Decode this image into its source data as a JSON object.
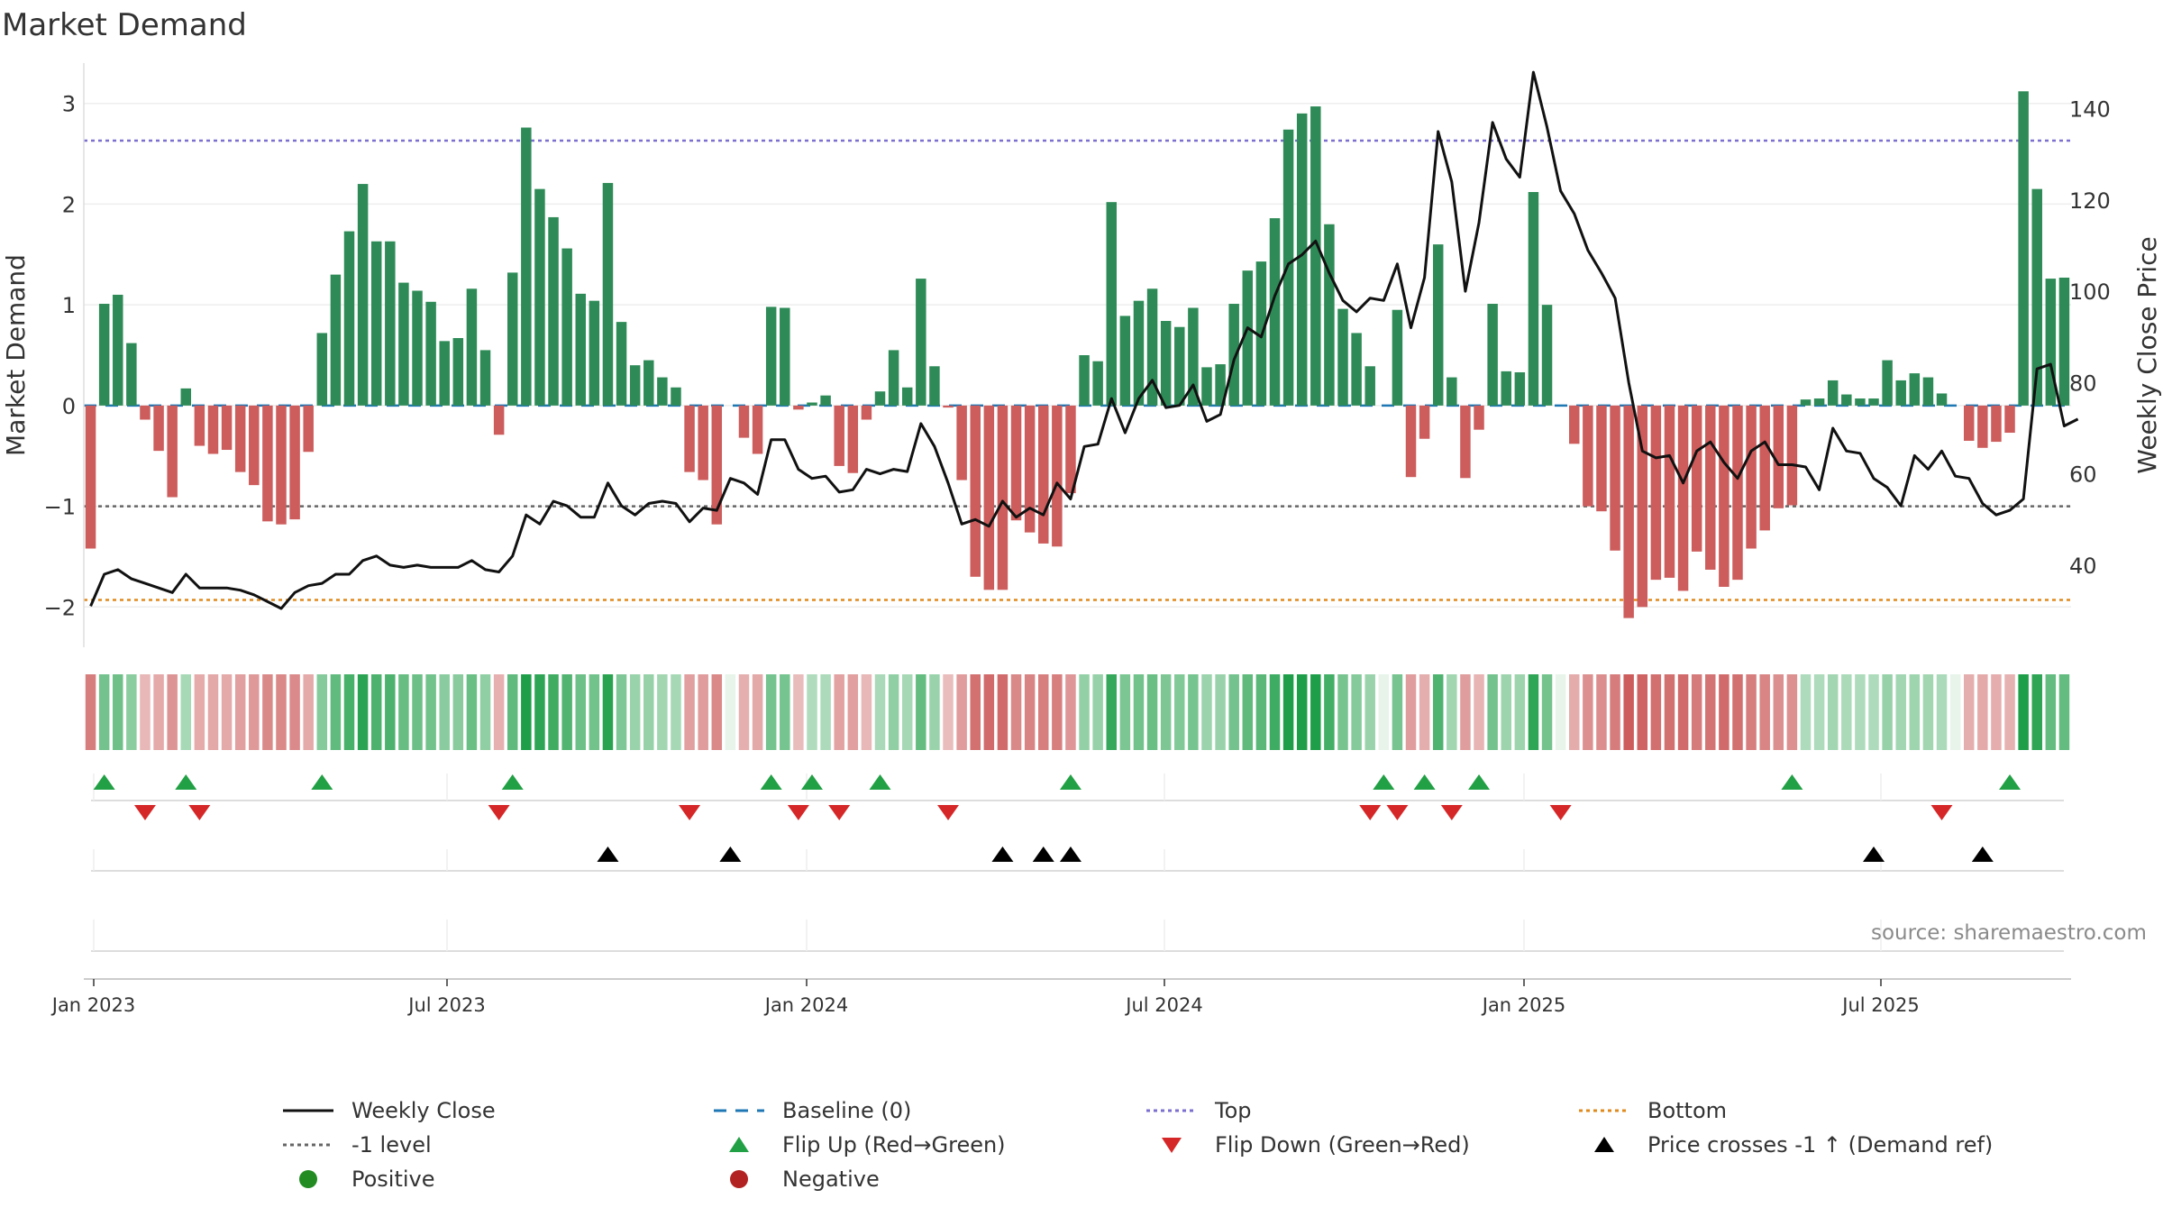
{
  "title": "Market Demand",
  "source": "source: sharemaestro.com",
  "colors": {
    "positive": "#2e8b57",
    "negative": "#cd5c5c",
    "price": "#111111",
    "top": "#7b6fd0",
    "bottom": "#e08a1e",
    "level": "#666666",
    "baseline": "#1f77b4",
    "flip_up": "#22a045",
    "flip_down": "#d62728",
    "cross": "#000000"
  },
  "chart_data": {
    "type": "bar",
    "title": "Market Demand",
    "ylabel_left": "Market Demand",
    "ylabel_right": "Weekly Close Price",
    "ylim_left": [
      -2.4,
      3.4
    ],
    "ylim_right": [
      22,
      150
    ],
    "yticks_left": [
      "−2",
      "−1",
      "0",
      "1",
      "2",
      "3"
    ],
    "yticks_right": [
      "40",
      "60",
      "80",
      "100",
      "120",
      "140"
    ],
    "xticks": [
      "Jan 2023",
      "Jul 2023",
      "Jan 2024",
      "Jul 2024",
      "Jan 2025",
      "Jul 2025"
    ],
    "reference_lines": {
      "top": 2.63,
      "bottom": -1.93,
      "level": -1.0,
      "baseline": 0
    },
    "series": [
      {
        "name": "Market Demand",
        "values": [
          -1.42,
          1.01,
          1.1,
          0.62,
          -0.14,
          -0.45,
          -0.91,
          0.17,
          -0.4,
          -0.48,
          -0.44,
          -0.66,
          -0.79,
          -1.15,
          -1.18,
          -1.13,
          -0.46,
          0.72,
          1.3,
          1.73,
          2.2,
          1.63,
          1.63,
          1.22,
          1.14,
          1.03,
          0.64,
          0.67,
          1.16,
          0.55,
          -0.29,
          1.32,
          2.76,
          2.15,
          1.87,
          1.56,
          1.11,
          1.04,
          2.21,
          0.83,
          0.4,
          0.45,
          0.28,
          0.18,
          -0.66,
          -0.74,
          -1.18,
          0.0,
          -0.32,
          -0.48,
          0.98,
          0.97,
          -0.04,
          0.03,
          0.1,
          -0.6,
          -0.67,
          -0.14,
          0.14,
          0.55,
          0.18,
          1.26,
          0.39,
          -0.02,
          -0.74,
          -1.7,
          -1.83,
          -1.83,
          -1.14,
          -1.26,
          -1.37,
          -1.4,
          -0.87,
          0.5,
          0.44,
          2.02,
          0.89,
          1.04,
          1.16,
          0.84,
          0.78,
          0.97,
          0.38,
          0.41,
          1.01,
          1.34,
          1.43,
          1.86,
          2.74,
          2.9,
          2.97,
          1.8,
          0.96,
          0.72,
          0.39,
          0.0,
          0.95,
          -0.71,
          -0.33,
          1.6,
          0.28,
          -0.72,
          -0.24,
          1.01,
          0.34,
          0.33,
          2.12,
          1.0,
          0.0,
          -0.38,
          -1.0,
          -1.05,
          -1.44,
          -2.11,
          -2.0,
          -1.73,
          -1.71,
          -1.84,
          -1.45,
          -1.63,
          -1.8,
          -1.73,
          -1.42,
          -1.24,
          -1.02,
          -0.99,
          0.06,
          0.07,
          0.25,
          0.11,
          0.07,
          0.07,
          0.45,
          0.25,
          0.32,
          0.28,
          0.12,
          0.0,
          -0.35,
          -0.42,
          -0.36,
          -0.27,
          3.12,
          2.15,
          1.26,
          1.27
        ]
      },
      {
        "name": "Weekly Close",
        "values": [
          31,
          38,
          39,
          37,
          36,
          35,
          34,
          38,
          35,
          35,
          35,
          34.5,
          33.5,
          32,
          30.5,
          34,
          35.5,
          36,
          38,
          38,
          41,
          42,
          40,
          39.5,
          40,
          39.5,
          39.5,
          39.5,
          41,
          39,
          38.5,
          42,
          51,
          49,
          54,
          53,
          50.5,
          50.5,
          58,
          53,
          51,
          53.5,
          54,
          53.5,
          49.5,
          52.5,
          52,
          59,
          58,
          55.5,
          67.5,
          67.5,
          61,
          59,
          59.5,
          56,
          56.5,
          61,
          60,
          61,
          60.5,
          71,
          66,
          58,
          49,
          50,
          48.5,
          54,
          50.5,
          52.5,
          51,
          58,
          54.5,
          66,
          66.5,
          76.5,
          69,
          76.5,
          80.5,
          74.5,
          75,
          79.5,
          71.5,
          73,
          85,
          92,
          90,
          99,
          106,
          108,
          111,
          104,
          98,
          95.5,
          98.5,
          98,
          106,
          92,
          103,
          135,
          124,
          100,
          115,
          137,
          129,
          125,
          148,
          136,
          122,
          117,
          109,
          104,
          98.5,
          80,
          65,
          63.5,
          64,
          58,
          65,
          67,
          62.5,
          59,
          65,
          67,
          62,
          62,
          61.5,
          56.5,
          70,
          65,
          64.5,
          59,
          57,
          53,
          64,
          61,
          65,
          59.5,
          59,
          53.5,
          51,
          52,
          54.5,
          83,
          84,
          70.5,
          72
        ]
      }
    ],
    "marker_rows": [
      {
        "name": "Flip Up (Red→Green)",
        "indices": [
          1,
          7,
          17,
          31,
          50,
          53,
          58,
          72,
          95,
          98,
          102,
          125,
          141
        ]
      },
      {
        "name": "Flip Down (Green→Red)",
        "indices": [
          4,
          8,
          30,
          44,
          52,
          55,
          63,
          94,
          96,
          100,
          108,
          136
        ]
      },
      {
        "name": "Price crosses -1 ↑ (Demand ref)",
        "indices": [
          38,
          47,
          67,
          70,
          72,
          131,
          139
        ]
      }
    ]
  },
  "legend": [
    {
      "label": "Weekly Close",
      "icon": "solid-line"
    },
    {
      "label": "Baseline (0)",
      "icon": "dashed-line"
    },
    {
      "label": "Top",
      "icon": "dotted-line"
    },
    {
      "label": "Bottom",
      "icon": "dotted-line"
    },
    {
      "label": "-1 level",
      "icon": "dotted-line"
    },
    {
      "label": "Flip Up (Red→Green)",
      "icon": "triangle-up"
    },
    {
      "label": "Flip Down (Green→Red)",
      "icon": "triangle-down"
    },
    {
      "label": "Price crosses -1 ↑ (Demand ref)",
      "icon": "triangle-up"
    },
    {
      "label": "Positive",
      "icon": "circle"
    },
    {
      "label": "Negative",
      "icon": "circle"
    }
  ]
}
